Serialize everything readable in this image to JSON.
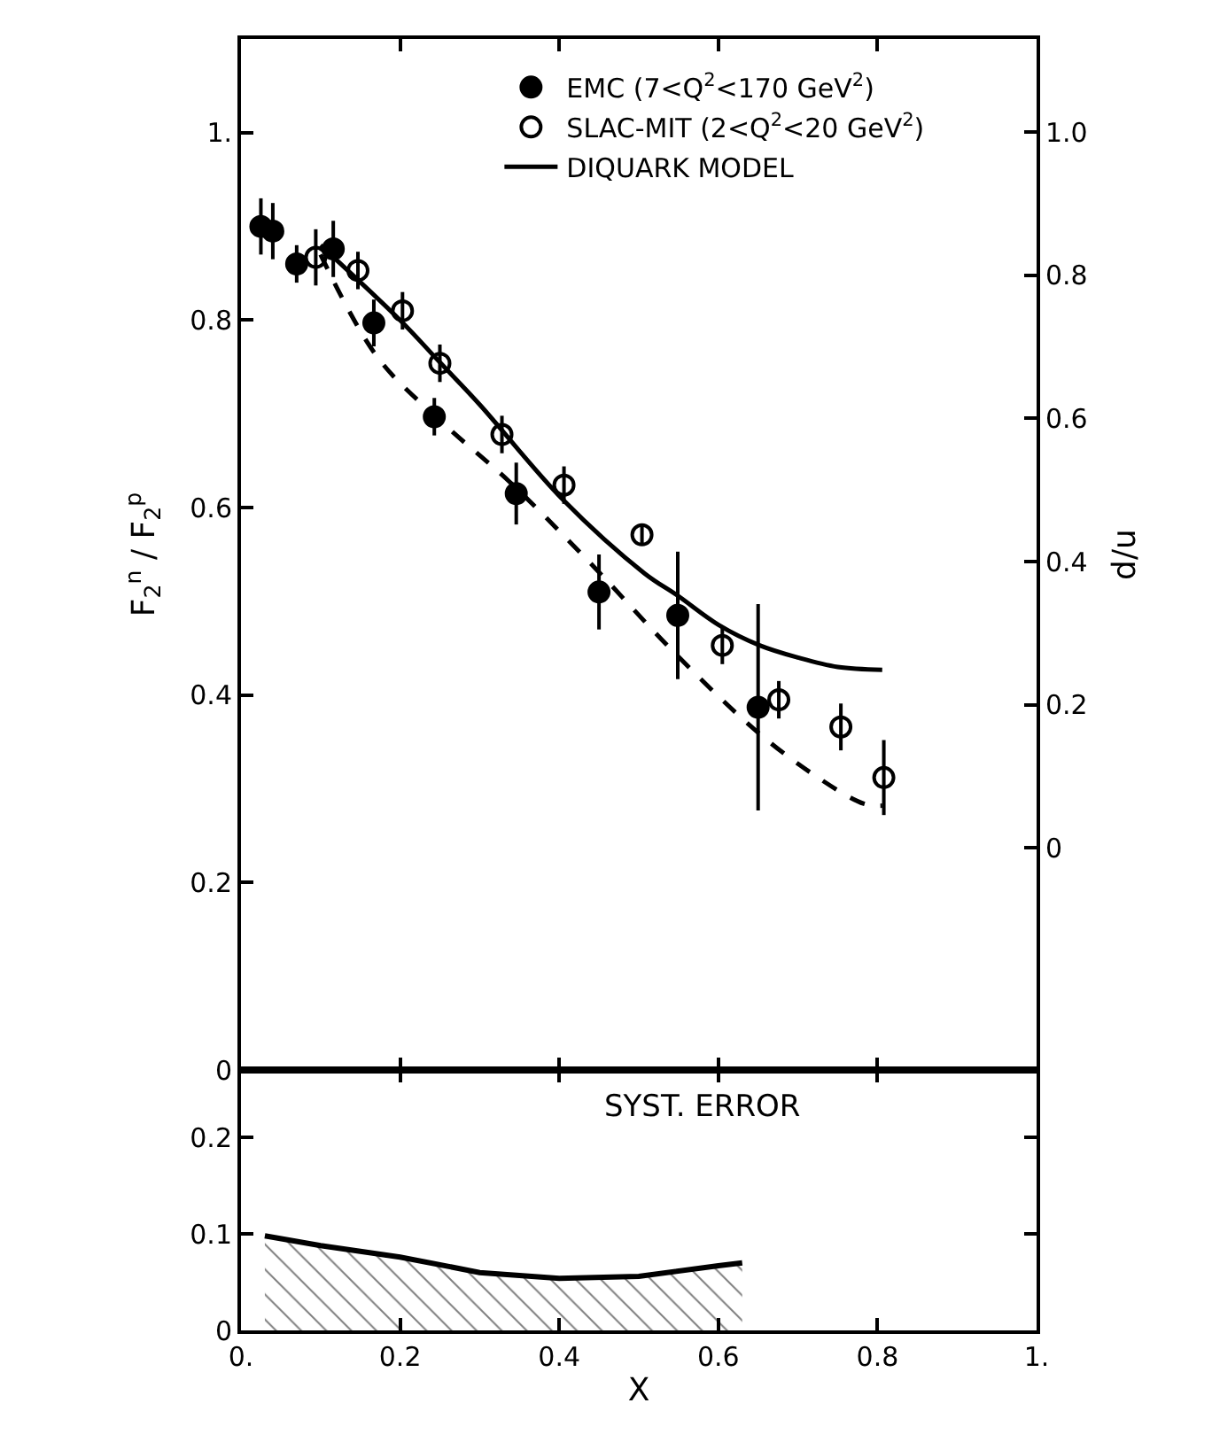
{
  "chart_data": [
    {
      "type": "scatter",
      "ylabel": "F$_{2}$$^{n}$ / F$_{2}$$^{p}$",
      "y2label": "d/u",
      "legend": "top",
      "tick_labels": "y",
      "xlim": [
        0,
        1
      ],
      "xticks": [
        0.2,
        0.4,
        0.6,
        0.8
      ],
      "ylim": [
        0,
        1.1
      ],
      "yticks": [
        0,
        0.2,
        0.4,
        0.6,
        0.8,
        {
          "value": 1,
          "label": "1."
        }
      ],
      "y2lim": [
        -0.31,
        1.13
      ],
      "y2ticks": [
        0,
        0.2,
        0.4,
        0.6,
        0.8,
        {
          "value": 1.0,
          "label": "1.0"
        }
      ],
      "series": [
        {
          "name": "EMC (7<Q$^{2}$<170 GeV$^{2}$)",
          "marker": "circle",
          "color": "#000000",
          "x": [
            0.025,
            0.04,
            0.07,
            0.116,
            0.167,
            0.243,
            0.346,
            0.45,
            0.549,
            0.65
          ],
          "values": [
            0.9,
            0.895,
            0.86,
            0.876,
            0.797,
            0.697,
            0.615,
            0.51,
            0.485,
            0.387
          ],
          "errors": [
            0.03,
            0.03,
            0.02,
            0.03,
            0.025,
            0.02,
            0.033,
            0.04,
            0.068,
            0.11
          ]
        },
        {
          "name": "SLAC-MIT (2<Q$^{2}$<20 GeV$^{2}$)",
          "marker": "circle-open",
          "color": "#000000",
          "x": [
            0.094,
            0.147,
            0.203,
            0.25,
            0.328,
            0.406,
            0.504,
            0.605,
            0.676,
            0.754,
            0.808
          ],
          "values": [
            0.867,
            0.853,
            0.81,
            0.754,
            0.678,
            0.624,
            0.571,
            0.453,
            0.395,
            0.366,
            0.312
          ],
          "errors": [
            0.03,
            0.02,
            0.02,
            0.02,
            0.02,
            0.02,
            0.01,
            0.02,
            0.02,
            0.025,
            0.04
          ]
        },
        {
          "name": "DIQUARK MODEL",
          "type": "line",
          "line_style": "solid",
          "marker": "none",
          "color": "#000000",
          "x": [
            0.1,
            0.2,
            0.25,
            0.3,
            0.404,
            0.507,
            0.549,
            0.6,
            0.652,
            0.7,
            0.75,
            0.806
          ],
          "values": [
            0.88,
            0.8,
            0.755,
            0.71,
            0.609,
            0.53,
            0.506,
            0.475,
            0.453,
            0.44,
            0.43,
            0.427
          ]
        },
        {
          "type": "line",
          "line_style": "dashed",
          "marker": "none",
          "color": "#000000",
          "x": [
            0.1,
            0.172,
            0.254,
            0.337,
            0.44,
            0.545,
            0.65,
            0.72,
            0.783,
            0.806
          ],
          "values": [
            0.87,
            0.76,
            0.69,
            0.628,
            0.54,
            0.445,
            0.36,
            0.315,
            0.284,
            0.282
          ]
        }
      ]
    },
    {
      "type": "area",
      "xlabel": "X",
      "annotations": [
        "SYST. ERROR"
      ],
      "xlim": [
        0,
        1
      ],
      "xticks": [
        {
          "value": 0,
          "label": "0."
        },
        0.2,
        0.4,
        0.6,
        0.8,
        {
          "value": 1,
          "label": "1."
        }
      ],
      "ylim": [
        0,
        0.27
      ],
      "yticks": [
        0,
        0.1,
        0.2
      ],
      "series": [
        {
          "color": "#000000",
          "x": [
            0.03,
            0.1,
            0.2,
            0.3,
            0.4,
            0.5,
            0.6,
            0.63
          ],
          "values": [
            0.098,
            0.088,
            0.076,
            0.06,
            0.054,
            0.056,
            0.067,
            0.07
          ]
        }
      ]
    }
  ]
}
